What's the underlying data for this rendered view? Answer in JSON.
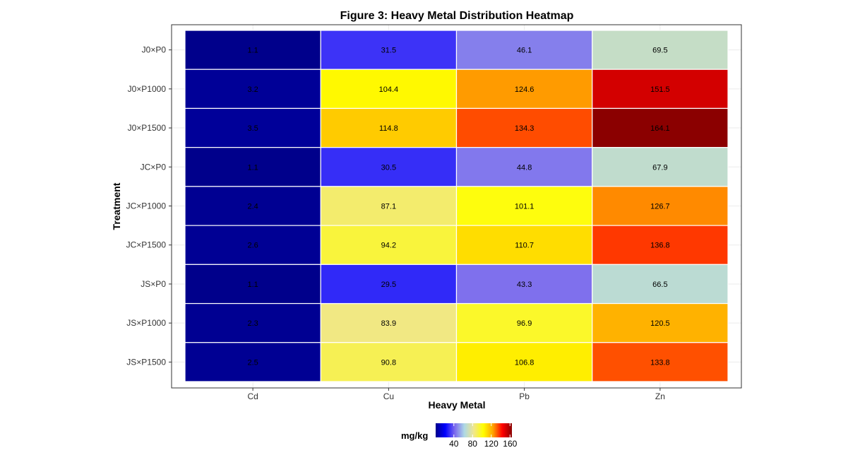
{
  "chart_data": {
    "type": "heatmap",
    "title": "Figure 3: Heavy Metal Distribution Heatmap",
    "xlabel": "Heavy Metal",
    "ylabel": "Treatment",
    "x_categories": [
      "Cd",
      "Cu",
      "Pb",
      "Zn"
    ],
    "y_categories": [
      "J0×P0",
      "J0×P1000",
      "J0×P1500",
      "JC×P0",
      "JC×P1000",
      "JC×P1500",
      "JS×P0",
      "JS×P1000",
      "JS×P1500"
    ],
    "values": [
      [
        1.1,
        31.5,
        46.1,
        69.5
      ],
      [
        3.2,
        104.4,
        124.6,
        151.5
      ],
      [
        3.5,
        114.8,
        134.3,
        164.1
      ],
      [
        1.1,
        30.5,
        44.8,
        67.9
      ],
      [
        2.4,
        87.1,
        101.1,
        126.7
      ],
      [
        2.6,
        94.2,
        110.7,
        136.8
      ],
      [
        1.1,
        29.5,
        43.3,
        66.5
      ],
      [
        2.3,
        83.9,
        96.9,
        120.5
      ],
      [
        2.5,
        90.8,
        106.8,
        133.8
      ]
    ],
    "legend": {
      "title": "mg/kg",
      "ticks": [
        40,
        80,
        120,
        160
      ],
      "range": [
        1.1,
        164.1
      ],
      "placement": "bottom"
    },
    "colors": {
      "scale": [
        "#00008b",
        "#0000ff",
        "#7b68ee",
        "#add8e6",
        "#f0e68c",
        "#ffff00",
        "#ffa500",
        "#ff0000",
        "#8b0000"
      ]
    },
    "grid": true
  }
}
